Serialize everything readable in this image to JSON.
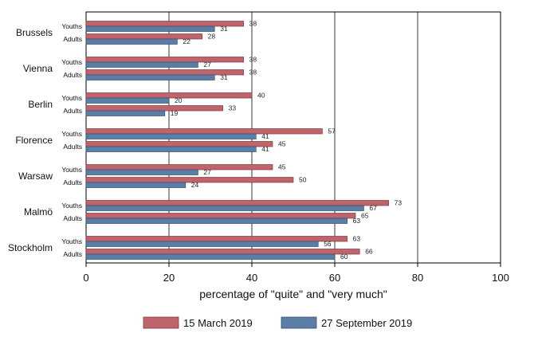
{
  "chart_data": {
    "type": "bar",
    "orientation": "horizontal",
    "title": "",
    "xlabel": "percentage of \"quite\" and \"very much\"",
    "xlim": [
      0,
      100
    ],
    "xticks": [
      0,
      20,
      40,
      60,
      80,
      100
    ],
    "grid": true,
    "legend_position": "bottom",
    "colors": {
      "s1": "#c0646c",
      "s2": "#5b7ea6"
    },
    "series": [
      {
        "name": "15 March 2019"
      },
      {
        "name": "27 September 2019"
      }
    ],
    "cities": [
      {
        "name": "Brussels",
        "groups": [
          {
            "name": "Youths",
            "values": [
              38,
              31
            ]
          },
          {
            "name": "Adults",
            "values": [
              28,
              22
            ]
          }
        ]
      },
      {
        "name": "Vienna",
        "groups": [
          {
            "name": "Youths",
            "values": [
              38,
              27
            ]
          },
          {
            "name": "Adults",
            "values": [
              38,
              31
            ]
          }
        ]
      },
      {
        "name": "Berlin",
        "groups": [
          {
            "name": "Youths",
            "values": [
              40,
              20
            ]
          },
          {
            "name": "Adults",
            "values": [
              33,
              19
            ]
          }
        ]
      },
      {
        "name": "Florence",
        "groups": [
          {
            "name": "Youths",
            "values": [
              57,
              41
            ]
          },
          {
            "name": "Adults",
            "values": [
              45,
              41
            ]
          }
        ]
      },
      {
        "name": "Warsaw",
        "groups": [
          {
            "name": "Youths",
            "values": [
              45,
              27
            ]
          },
          {
            "name": "Adults",
            "values": [
              50,
              24
            ]
          }
        ]
      },
      {
        "name": "Malmö",
        "groups": [
          {
            "name": "Youths",
            "values": [
              73,
              67
            ]
          },
          {
            "name": "Adults",
            "values": [
              65,
              63
            ]
          }
        ]
      },
      {
        "name": "Stockholm",
        "groups": [
          {
            "name": "Youths",
            "values": [
              63,
              56
            ]
          },
          {
            "name": "Adults",
            "values": [
              66,
              60
            ]
          }
        ]
      }
    ]
  }
}
